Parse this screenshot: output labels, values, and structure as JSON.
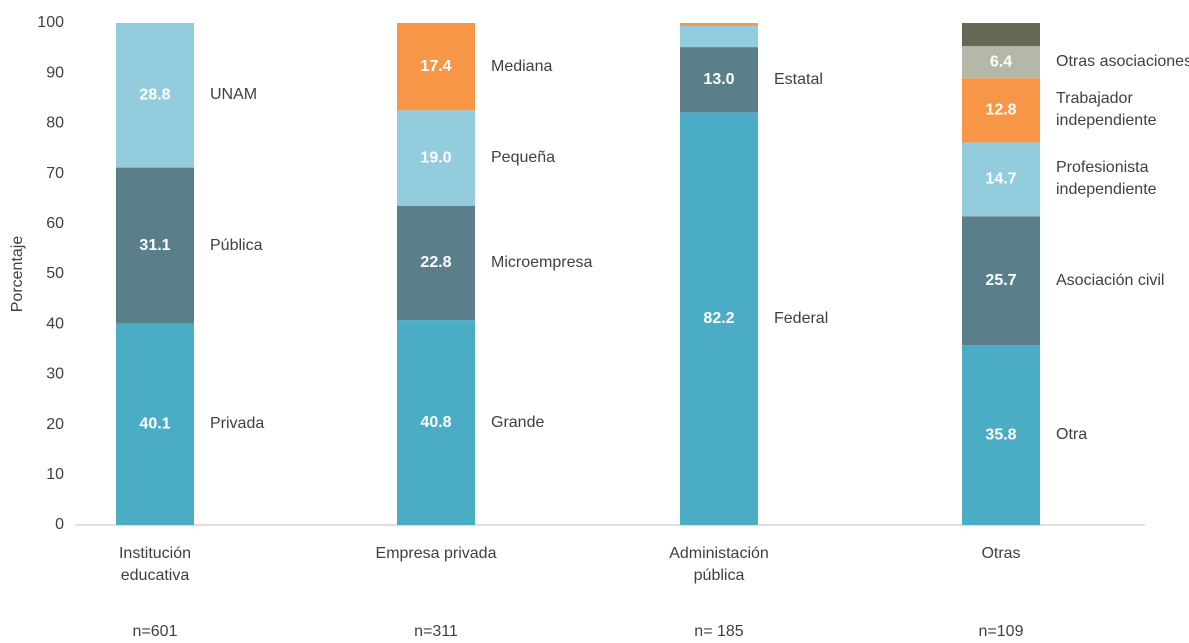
{
  "chart_data": {
    "type": "stacked_bar",
    "ylabel": "Porcentaje",
    "ylim": [
      0,
      100
    ],
    "yticks": [
      0,
      10,
      20,
      30,
      40,
      50,
      60,
      70,
      80,
      90,
      100
    ],
    "grid": false,
    "bars": [
      {
        "category": "Institución educativa",
        "n_label": "n=601",
        "names": [
          "Privada",
          "Pública",
          "UNAM"
        ],
        "values": [
          40.1,
          31.1,
          28.8
        ],
        "value_labels": [
          "40.1",
          "31.1",
          "28.8"
        ],
        "colors": [
          "#4bacc6",
          "#5b7f8a",
          "#93cddd"
        ]
      },
      {
        "category": "Empresa privada",
        "n_label": "n=311",
        "names": [
          "Grande",
          "Microempresa",
          "Pequeña",
          "Mediana"
        ],
        "values": [
          40.8,
          22.8,
          19.0,
          17.4
        ],
        "value_labels": [
          "40.8",
          "22.8",
          "19.0",
          "17.4"
        ],
        "colors": [
          "#4bacc6",
          "#5b7f8a",
          "#93cddd",
          "#f79646"
        ]
      },
      {
        "category": "Administación pública",
        "n_label": "n= 185",
        "names": [
          "Federal",
          "Estatal",
          null,
          null
        ],
        "values": [
          82.2,
          13.0,
          4.3,
          0.5
        ],
        "value_labels": [
          "82.2",
          "13.0",
          null,
          null
        ],
        "colors": [
          "#4bacc6",
          "#5b7f8a",
          "#93cddd",
          "#f79646"
        ]
      },
      {
        "category": "Otras",
        "n_label": "n=109",
        "names": [
          "Otra",
          "Asociación civil",
          "Profesionista independiente",
          "Trabajador independiente",
          "Otras asociaciones",
          null
        ],
        "values": [
          35.8,
          25.7,
          14.7,
          12.8,
          6.4,
          4.6
        ],
        "value_labels": [
          "35.8",
          "25.7",
          "14.7",
          "12.8",
          "6.4",
          null
        ],
        "colors": [
          "#4bacc6",
          "#5b7f8a",
          "#93cddd",
          "#f79646",
          "#b5b8a8",
          "#666a55"
        ]
      }
    ]
  }
}
